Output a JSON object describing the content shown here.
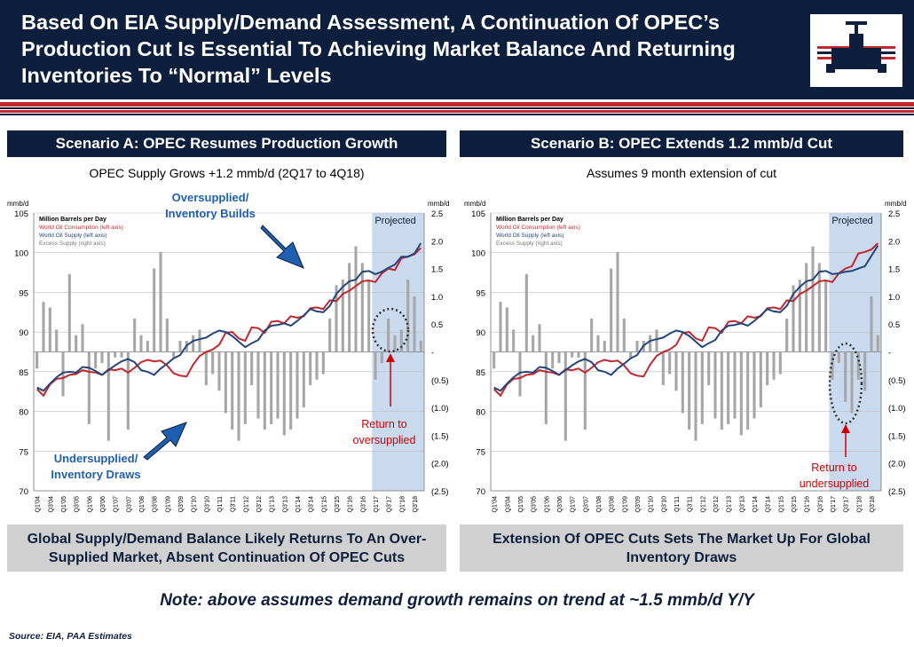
{
  "header": {
    "title": "Based On EIA Supply/Demand Assessment, A Continuation Of OPEC’s Production Cut Is Essential To Achieving Market Balance And Returning Inventories To “Normal” Levels"
  },
  "left": {
    "heading": "Scenario A: OPEC Resumes Production Growth",
    "subtitle": "OPEC Supply Grows +1.2 mmb/d (2Q17 to 4Q18)",
    "footer": "Global Supply/Demand Balance Likely Returns To An Over-Supplied Market, Absent Continuation Of OPEC Cuts",
    "annotations": {
      "over_line1": "Oversupplied/",
      "over_line2": "Inventory Builds",
      "under_line1": "Undersupplied/",
      "under_line2": "Inventory Draws",
      "return_line1": "Return to",
      "return_line2": "oversupplied"
    }
  },
  "right": {
    "heading": "Scenario B: OPEC Extends 1.2 mmb/d Cut",
    "subtitle": "Assumes 9 month extension of  cut",
    "footer": "Extension Of OPEC Cuts Sets The Market Up For Global Inventory Draws",
    "annotations": {
      "return_line1": "Return to",
      "return_line2": "undersupplied"
    }
  },
  "note": "Note: above assumes demand growth remains on trend at ~1.5 mmb/d Y/Y",
  "source": "Source: EIA, PAA Estimates",
  "colors": {
    "navy": "#0e1f3d",
    "consumption": "#c0282e",
    "supply": "#24457a",
    "excess": "#a6a6a6",
    "projected": "#c9d9ee",
    "accent_red": "#d00000",
    "arrow": "#1f5fb0"
  },
  "chart_data": [
    {
      "type": "line",
      "title": "OPEC Supply Grows +1.2 mmb/d (2Q17 to 4Q18)",
      "ylabel_left": "mmb/d",
      "ylabel_right": "mmb/d",
      "ylim": [
        70,
        105
      ],
      "y2lim": [
        -2.5,
        2.5
      ],
      "y_ticks": [
        "105",
        "100",
        "95",
        "90",
        "85",
        "80",
        "75",
        "70"
      ],
      "y2_ticks": [
        "2.5",
        "2.0",
        "1.5",
        "1.0",
        "0.5",
        "-",
        "(0.5)",
        "(1.0)",
        "(1.5)",
        "(2.0)",
        "(2.5)"
      ],
      "x_ticks": [
        "Q1'04",
        "Q3'04",
        "Q1'05",
        "Q3'05",
        "Q1'06",
        "Q3'06",
        "Q1'07",
        "Q3'07",
        "Q1'08",
        "Q3'08",
        "Q1'09",
        "Q3'09",
        "Q1'10",
        "Q3'10",
        "Q1'11",
        "Q3'11",
        "Q1'12",
        "Q3'12",
        "Q1'13",
        "Q3'13",
        "Q1'14",
        "Q3'14",
        "Q1'15",
        "Q3'15",
        "Q1'16",
        "Q3'16",
        "Q1'17",
        "Q3'17",
        "Q1'18",
        "Q3'18"
      ],
      "projected_label": "Projected",
      "projected_from_index": 52,
      "legend": [
        "Million Barrels per Day",
        "World Oil Consumption (left axis)",
        "World Oil Supply (left axis)",
        "Excess Supply (right axis)"
      ],
      "series": [
        {
          "name": "World Oil Consumption (left axis)",
          "axis": "left",
          "values": [
            82.8,
            82.0,
            83.4,
            84.1,
            84.2,
            84.6,
            84.7,
            85.2,
            85.0,
            84.9,
            84.6,
            85.3,
            85.2,
            85.4,
            84.9,
            85.5,
            86.2,
            86.5,
            86.3,
            86.4,
            85.8,
            84.8,
            84.5,
            84.4,
            85.9,
            87.0,
            87.5,
            87.8,
            88.4,
            89.9,
            90.0,
            89.2,
            88.9,
            90.6,
            90.5,
            89.9,
            91.3,
            91.4,
            91.1,
            92.0,
            91.8,
            92.0,
            93.0,
            93.1,
            92.9,
            94.0,
            93.9,
            94.8,
            95.2,
            95.8,
            96.4,
            96.5,
            96.3,
            97.4,
            98.0,
            97.8,
            99.3,
            99.5,
            99.8,
            100.6
          ]
        },
        {
          "name": "World Oil Supply (left axis)",
          "axis": "left",
          "values": [
            83.0,
            82.6,
            83.5,
            84.3,
            84.9,
            85.0,
            84.9,
            85.6,
            85.5,
            85.1,
            84.6,
            85.2,
            85.8,
            86.3,
            86.6,
            86.2,
            85.2,
            85.0,
            84.6,
            85.4,
            86.0,
            86.7,
            87.1,
            88.3,
            88.9,
            89.1,
            89.3,
            89.8,
            90.2,
            90.0,
            89.5,
            88.8,
            88.1,
            88.6,
            89.0,
            90.2,
            90.8,
            90.9,
            91.1,
            90.8,
            91.4,
            92.1,
            92.9,
            92.6,
            92.5,
            93.3,
            94.8,
            95.7,
            96.4,
            96.6,
            97.6,
            97.7,
            97.3,
            97.6,
            98.1,
            98.5,
            99.5,
            99.5,
            99.9,
            101.2
          ]
        },
        {
          "name": "Excess Supply (right axis)",
          "axis": "right",
          "values": [
            -0.3,
            0.9,
            0.8,
            0.4,
            -0.8,
            1.4,
            0.3,
            0.5,
            -1.3,
            -0.3,
            -0.2,
            -1.6,
            -0.1,
            -0.1,
            -1.4,
            0.6,
            0.3,
            0.2,
            1.5,
            1.8,
            0.6,
            -0.1,
            0.2,
            0.2,
            0.3,
            0.4,
            -0.6,
            -0.4,
            -0.7,
            -1.1,
            -1.4,
            -1.6,
            -1.3,
            -0.6,
            -1.2,
            -1.4,
            -1.3,
            -1.2,
            -1.5,
            -1.4,
            -1.2,
            -1.0,
            -0.6,
            -0.5,
            -0.4,
            0.6,
            1.2,
            1.3,
            1.6,
            1.9,
            1.6,
            1.3,
            -0.5,
            -0.2,
            0.6,
            0.3,
            0.4,
            1.3,
            1.0,
            0.2
          ]
        }
      ]
    },
    {
      "type": "line",
      "title": "Assumes 9 month extension of  cut",
      "ylabel_left": "mmb/d",
      "ylabel_right": "mmb/d",
      "ylim": [
        70,
        105
      ],
      "y2lim": [
        -2.5,
        2.5
      ],
      "y_ticks": [
        "105",
        "100",
        "95",
        "90",
        "85",
        "80",
        "75",
        "70"
      ],
      "y2_ticks": [
        "2.5",
        "2.0",
        "1.5",
        "1.0",
        "0.5",
        "-",
        "(0.5)",
        "(1.0)",
        "(1.5)",
        "(2.0)",
        "(2.5)"
      ],
      "x_ticks": [
        "Q1'04",
        "Q3'04",
        "Q1'05",
        "Q3'05",
        "Q1'06",
        "Q3'06",
        "Q1'07",
        "Q3'07",
        "Q1'08",
        "Q3'08",
        "Q1'09",
        "Q3'09",
        "Q1'10",
        "Q3'10",
        "Q1'11",
        "Q3'11",
        "Q1'12",
        "Q3'12",
        "Q1'13",
        "Q3'13",
        "Q1'14",
        "Q3'14",
        "Q1'15",
        "Q3'15",
        "Q1'16",
        "Q3'16",
        "Q1'17",
        "Q3'17",
        "Q1'18",
        "Q3'18"
      ],
      "projected_label": "Projected",
      "projected_from_index": 52,
      "legend": [
        "Million Barrels per Day",
        "World Oil Consumption (left axis)",
        "World Oil Supply (left axis)",
        "Excess Supply (right axis)"
      ],
      "series": [
        {
          "name": "World Oil Consumption (left axis)",
          "axis": "left",
          "values": [
            82.8,
            82.0,
            83.4,
            84.1,
            84.2,
            84.6,
            84.7,
            85.2,
            85.0,
            84.9,
            84.6,
            85.3,
            85.2,
            85.4,
            84.9,
            85.5,
            86.2,
            86.5,
            86.3,
            86.4,
            85.8,
            84.8,
            84.5,
            84.4,
            85.9,
            87.0,
            87.5,
            87.8,
            88.4,
            89.9,
            90.0,
            89.2,
            88.9,
            90.6,
            90.5,
            89.9,
            91.3,
            91.4,
            91.1,
            92.0,
            91.8,
            92.0,
            93.0,
            93.1,
            92.9,
            94.0,
            93.9,
            94.8,
            95.2,
            95.8,
            96.4,
            96.5,
            96.3,
            97.4,
            98.0,
            98.3,
            99.9,
            100.1,
            100.4,
            101.2
          ]
        },
        {
          "name": "World Oil Supply (left axis)",
          "axis": "left",
          "values": [
            83.0,
            82.6,
            83.5,
            84.3,
            84.9,
            85.0,
            84.9,
            85.6,
            85.5,
            85.1,
            84.6,
            85.2,
            85.8,
            86.3,
            86.6,
            86.2,
            85.2,
            85.0,
            84.6,
            85.4,
            86.0,
            86.7,
            87.1,
            88.3,
            88.9,
            89.1,
            89.3,
            89.8,
            90.2,
            90.0,
            89.5,
            88.8,
            88.1,
            88.6,
            89.0,
            90.2,
            90.8,
            90.9,
            91.1,
            90.8,
            91.4,
            92.1,
            92.9,
            92.6,
            92.5,
            93.3,
            94.8,
            95.7,
            96.4,
            96.6,
            97.6,
            97.7,
            97.3,
            97.4,
            97.6,
            97.7,
            98.0,
            98.3,
            99.6,
            100.9
          ]
        },
        {
          "name": "Excess Supply (right axis)",
          "axis": "right",
          "values": [
            -0.3,
            0.9,
            0.8,
            0.4,
            -0.8,
            1.4,
            0.3,
            0.5,
            -1.3,
            -0.3,
            -0.2,
            -1.6,
            -0.1,
            -0.1,
            -1.4,
            0.6,
            0.3,
            0.2,
            1.5,
            1.8,
            0.6,
            -0.1,
            0.2,
            0.2,
            0.3,
            0.4,
            -0.6,
            -0.4,
            -0.7,
            -1.1,
            -1.4,
            -1.6,
            -1.3,
            -0.6,
            -1.2,
            -1.4,
            -1.3,
            -1.2,
            -1.5,
            -1.4,
            -1.2,
            -1.0,
            -0.6,
            -0.5,
            -0.4,
            0.6,
            1.2,
            1.3,
            1.6,
            1.9,
            1.6,
            1.3,
            -0.5,
            -0.2,
            -0.9,
            -1.1,
            -0.5,
            -0.7,
            1.0,
            0.3
          ]
        }
      ]
    }
  ]
}
